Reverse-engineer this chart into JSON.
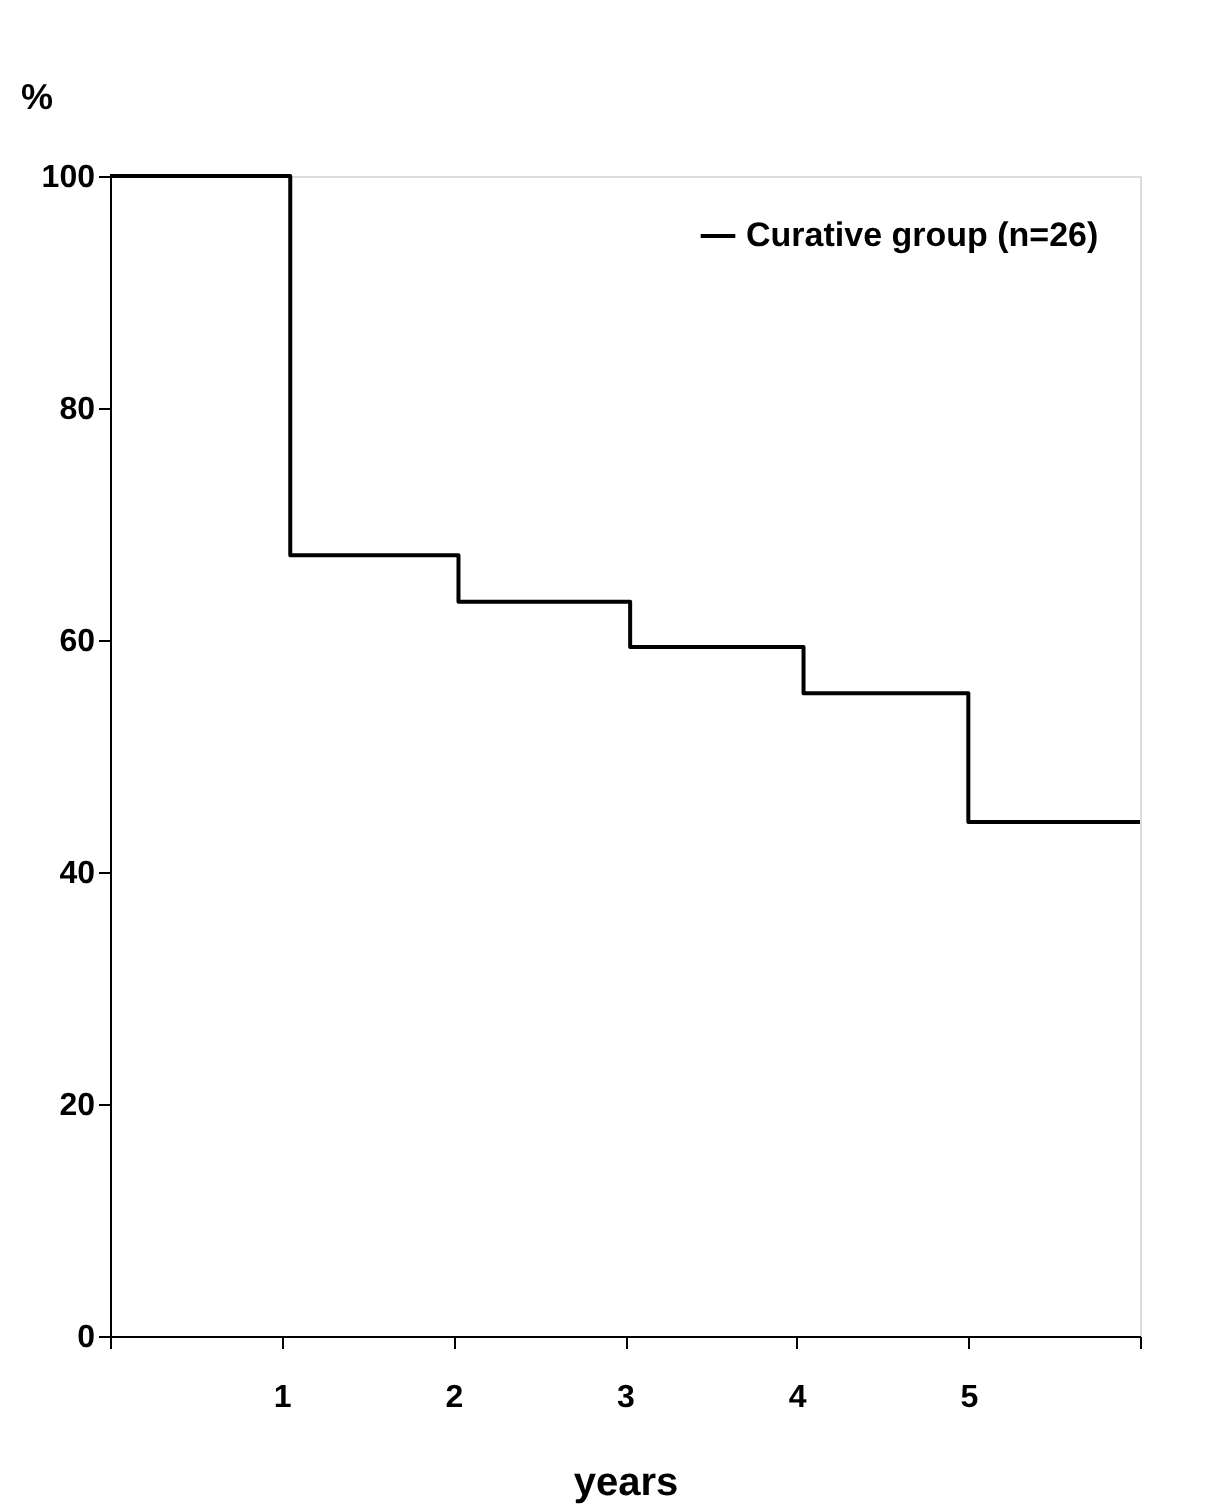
{
  "chart_data": {
    "type": "step",
    "ylabel": "%",
    "xlabel": "years",
    "x": [
      0,
      1.05,
      2.03,
      3.03,
      4.04,
      5.0,
      6.0
    ],
    "series": [
      {
        "name": "Curative group (n=26)",
        "color": "#000000",
        "values": [
          100,
          67.3,
          63.3,
          59.4,
          55.4,
          44.3,
          44.3
        ]
      }
    ],
    "xlim": [
      0,
      6
    ],
    "xticks": [
      {
        "value": 0,
        "label": null
      },
      1,
      2,
      3,
      4,
      5,
      {
        "value": 6,
        "label": null
      }
    ],
    "ylim": [
      0,
      100
    ],
    "yticks": [
      0,
      20,
      40,
      60,
      80,
      100
    ],
    "grid": false,
    "legend": "top right",
    "marker": "none",
    "line_style": "solid"
  }
}
